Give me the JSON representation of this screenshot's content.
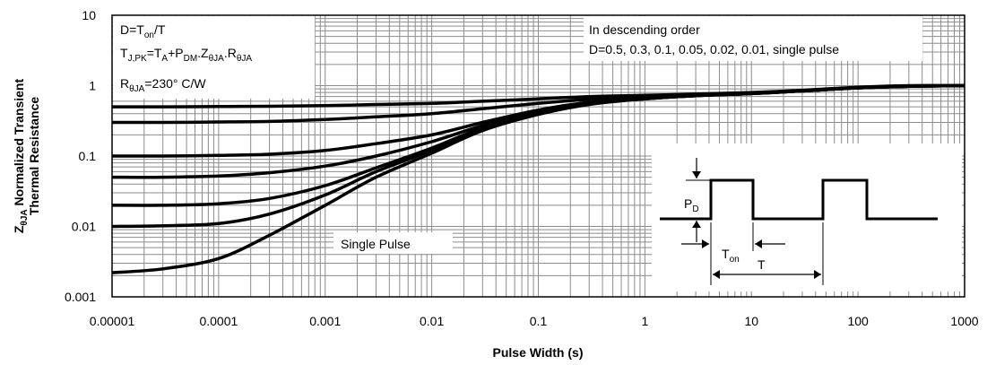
{
  "chart_data": {
    "type": "line",
    "title": "",
    "xlabel": "Pulse Width (s)",
    "ylabel_line1": "ZθJA Normalized Transient",
    "ylabel_line2": "Thermal Resistance",
    "ylabel_z": "Z",
    "ylabel_z_sub": "θJA",
    "ylabel_rest": " Normalized Transient",
    "xscale": "log",
    "yscale": "log",
    "xlim": [
      1e-05,
      1000
    ],
    "ylim": [
      0.001,
      10
    ],
    "x_ticks": [
      {
        "value": 1e-05,
        "label": "0.00001"
      },
      {
        "value": 0.0001,
        "label": "0.0001"
      },
      {
        "value": 0.001,
        "label": "0.001"
      },
      {
        "value": 0.01,
        "label": "0.01"
      },
      {
        "value": 0.1,
        "label": "0.1"
      },
      {
        "value": 1,
        "label": "1"
      },
      {
        "value": 10,
        "label": "10"
      },
      {
        "value": 100,
        "label": "100"
      },
      {
        "value": 1000,
        "label": "1000"
      }
    ],
    "y_ticks": [
      {
        "value": 0.001,
        "label": "0.001"
      },
      {
        "value": 0.01,
        "label": "0.01"
      },
      {
        "value": 0.1,
        "label": "0.1"
      },
      {
        "value": 1,
        "label": "1"
      },
      {
        "value": 10,
        "label": "10"
      }
    ],
    "grid": true,
    "x": [
      1e-05,
      3e-05,
      0.0001,
      0.0003,
      0.001,
      0.003,
      0.01,
      0.03,
      0.1,
      0.3,
      1,
      3,
      10,
      30,
      100,
      300,
      1000
    ],
    "series": [
      {
        "values": [
          0.5,
          0.5,
          0.505,
          0.51,
          0.52,
          0.54,
          0.56,
          0.6,
          0.65,
          0.7,
          0.73,
          0.76,
          0.8,
          0.86,
          0.95,
          1.0,
          1.0
        ]
      },
      {
        "values": [
          0.3,
          0.3,
          0.305,
          0.31,
          0.33,
          0.36,
          0.4,
          0.47,
          0.56,
          0.64,
          0.7,
          0.75,
          0.79,
          0.85,
          0.94,
          0.99,
          1.0
        ]
      },
      {
        "values": [
          0.1,
          0.1,
          0.102,
          0.106,
          0.12,
          0.15,
          0.2,
          0.3,
          0.45,
          0.58,
          0.67,
          0.73,
          0.78,
          0.84,
          0.93,
          0.98,
          1.0
        ]
      },
      {
        "values": [
          0.05,
          0.05,
          0.052,
          0.058,
          0.072,
          0.1,
          0.16,
          0.27,
          0.42,
          0.56,
          0.66,
          0.72,
          0.78,
          0.84,
          0.93,
          0.98,
          1.0
        ]
      },
      {
        "values": [
          0.02,
          0.02,
          0.021,
          0.025,
          0.038,
          0.068,
          0.13,
          0.25,
          0.4,
          0.55,
          0.65,
          0.72,
          0.77,
          0.84,
          0.93,
          0.98,
          1.0
        ]
      },
      {
        "values": [
          0.01,
          0.0102,
          0.011,
          0.015,
          0.028,
          0.06,
          0.12,
          0.24,
          0.4,
          0.55,
          0.65,
          0.72,
          0.77,
          0.84,
          0.93,
          0.98,
          1.0
        ]
      },
      {
        "name": "Single Pulse",
        "values": [
          0.0022,
          0.0025,
          0.0035,
          0.0075,
          0.02,
          0.05,
          0.11,
          0.23,
          0.39,
          0.54,
          0.65,
          0.72,
          0.77,
          0.84,
          0.93,
          0.98,
          1.0
        ]
      }
    ]
  },
  "annotations": {
    "formula_duty": "D=T",
    "formula_duty_sub": "on",
    "formula_duty_rest": "/T",
    "formula_tj": "T",
    "formula_tj_sub": "J,PK",
    "formula_tj_eq": "=T",
    "formula_ta_sub": "A",
    "formula_plus": "+P",
    "formula_pdm_sub": "DM",
    "formula_z": ".Z",
    "formula_z_sub": "θJA",
    "formula_r": ".R",
    "formula_r_sub": "θJA",
    "formula_rth": "R",
    "formula_rth_sub": "θJA",
    "formula_rth_val": "=230° C/W",
    "order_title": "In descending order",
    "order_values": "D=0.5, 0.3, 0.1, 0.05, 0.02, 0.01, single pulse",
    "single_pulse_label": "Single Pulse",
    "inset_pd": "P",
    "inset_pd_sub": "D",
    "inset_ton": "T",
    "inset_ton_sub": "on",
    "inset_t": "T"
  }
}
